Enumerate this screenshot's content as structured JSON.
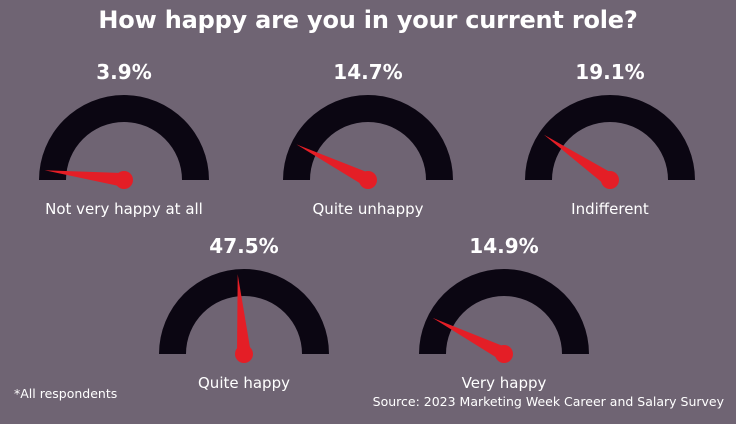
{
  "title": "How happy are you in your current role?",
  "footnote": "*All respondents",
  "source": "Source: 2023 Marketing Week Career and Salary Survey",
  "colors": {
    "background": "#6f6473",
    "gauge": "#0b0612",
    "needle": "#e41e26",
    "text": "#ffffff"
  },
  "chart_data": {
    "type": "gauge",
    "title": "How happy are you in your current role?",
    "unit": "%",
    "range": [
      0,
      100
    ],
    "items": [
      {
        "label": "Not very happy at all",
        "value": 3.9,
        "display": "3.9%"
      },
      {
        "label": "Quite unhappy",
        "value": 14.7,
        "display": "14.7%"
      },
      {
        "label": "Indifferent",
        "value": 19.1,
        "display": "19.1%"
      },
      {
        "label": "Quite happy",
        "value": 47.5,
        "display": "47.5%"
      },
      {
        "label": "Very happy",
        "value": 14.9,
        "display": "14.9%"
      }
    ]
  }
}
